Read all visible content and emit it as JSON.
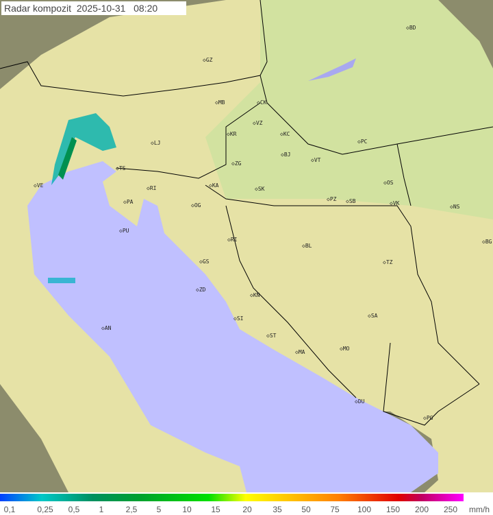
{
  "title": "Radar kompozit  2025-10-31   08:20",
  "colors": {
    "sea": "#c0c0ff",
    "land": "#e8e4a8",
    "outside": "#8a8a6a"
  },
  "cities": [
    "BD",
    "GZ",
    "MB",
    "CK",
    "VZ",
    "KR",
    "KC",
    "LJ",
    "PC",
    "BJ",
    "ZG",
    "VT",
    "TS",
    "VE",
    "KA",
    "SK",
    "OS",
    "PA",
    "RI",
    "OG",
    "PZ",
    "SB",
    "VK",
    "NS",
    "PU",
    "RI",
    "BL",
    "BG",
    "GS",
    "TZ",
    "ZD",
    "KN",
    "SA",
    "SI",
    "AN",
    "ST",
    "MA",
    "MO",
    "DU",
    "PG"
  ],
  "legend": {
    "ticks": [
      "0,1",
      "0,25",
      "0,5",
      "1",
      "2,5",
      "5",
      "10",
      "15",
      "20",
      "35",
      "50",
      "75",
      "100",
      "150",
      "200",
      "250"
    ],
    "unit": "mm/h"
  }
}
